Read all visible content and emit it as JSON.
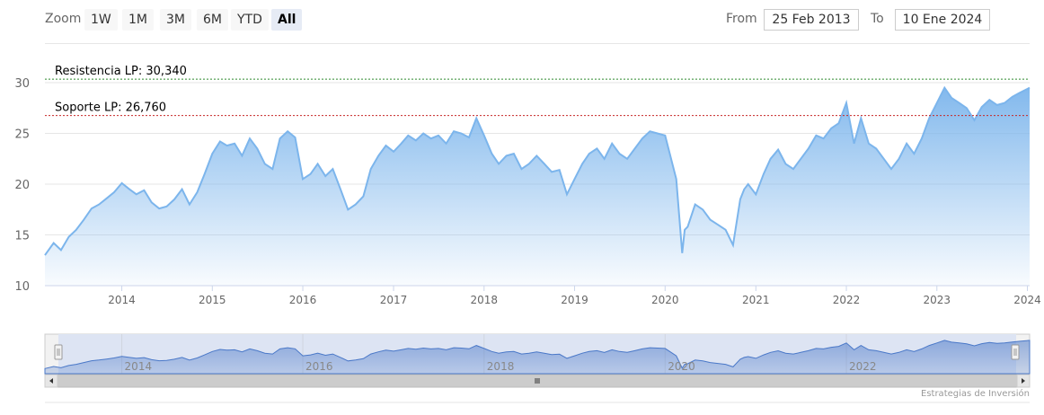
{
  "toolbar": {
    "zoom_label": "Zoom",
    "buttons": [
      "1W",
      "1M",
      "3M",
      "6M",
      "YTD",
      "All"
    ],
    "active_button": "All",
    "from_label": "From",
    "from_value": "25 Feb 2013",
    "to_label": "To",
    "to_value": "10 Ene 2024"
  },
  "credit": "Estrategias de Inversión",
  "colors": {
    "series": "#7cb5ec",
    "resistance": "#2e8b2e",
    "support": "#c62828"
  },
  "chart_data": {
    "type": "area",
    "title": "",
    "xlabel": "",
    "ylabel": "",
    "ylim": [
      10,
      30
    ],
    "yticks": [
      10,
      15,
      20,
      25,
      30
    ],
    "xlim": [
      "2013-02-25",
      "2024-01-10"
    ],
    "xticks": [
      "2014",
      "2015",
      "2016",
      "2017",
      "2018",
      "2019",
      "2020",
      "2021",
      "2022",
      "2023",
      "2024"
    ],
    "grid": true,
    "legend": "none",
    "lines": [
      {
        "label": "Resistencia LP: 30,340",
        "value": 30.34,
        "style": "dotted"
      },
      {
        "label": "Soporte LP: 26,760",
        "value": 26.76,
        "style": "dotted"
      }
    ],
    "series": [
      {
        "x": [
          "2013-02-25",
          "2013-04-01",
          "2013-05-01",
          "2013-06-01",
          "2013-07-01",
          "2013-08-01",
          "2013-09-01",
          "2013-10-01",
          "2013-11-01",
          "2013-12-01",
          "2014-01-01",
          "2014-02-01",
          "2014-03-01",
          "2014-04-01",
          "2014-05-01",
          "2014-06-01",
          "2014-07-01",
          "2014-08-01",
          "2014-09-01",
          "2014-10-01",
          "2014-11-01",
          "2014-12-01",
          "2015-01-01",
          "2015-02-01",
          "2015-03-01",
          "2015-04-01",
          "2015-05-01",
          "2015-06-01",
          "2015-07-01",
          "2015-08-01",
          "2015-09-01",
          "2015-10-01",
          "2015-11-01",
          "2015-12-01",
          "2016-01-01",
          "2016-02-01",
          "2016-03-01",
          "2016-04-01",
          "2016-05-01",
          "2016-06-01",
          "2016-07-01",
          "2016-08-01",
          "2016-09-01",
          "2016-10-01",
          "2016-11-01",
          "2016-12-01",
          "2017-01-01",
          "2017-02-01",
          "2017-03-01",
          "2017-04-01",
          "2017-05-01",
          "2017-06-01",
          "2017-07-01",
          "2017-08-01",
          "2017-09-01",
          "2017-10-01",
          "2017-11-01",
          "2017-12-01",
          "2018-01-01",
          "2018-02-01",
          "2018-03-01",
          "2018-04-01",
          "2018-05-01",
          "2018-06-01",
          "2018-07-01",
          "2018-08-01",
          "2018-09-01",
          "2018-10-01",
          "2018-11-01",
          "2018-12-01",
          "2019-01-01",
          "2019-02-01",
          "2019-03-01",
          "2019-04-01",
          "2019-05-01",
          "2019-06-01",
          "2019-07-01",
          "2019-08-01",
          "2019-09-01",
          "2019-10-01",
          "2019-11-01",
          "2019-12-01",
          "2020-01-01",
          "2020-02-15",
          "2020-03-10",
          "2020-03-20",
          "2020-04-01",
          "2020-05-01",
          "2020-06-01",
          "2020-07-01",
          "2020-08-01",
          "2020-09-01",
          "2020-10-01",
          "2020-10-30",
          "2020-11-15",
          "2020-12-01",
          "2021-01-01",
          "2021-02-01",
          "2021-03-01",
          "2021-04-01",
          "2021-05-01",
          "2021-06-01",
          "2021-07-01",
          "2021-08-01",
          "2021-09-01",
          "2021-10-01",
          "2021-11-01",
          "2021-12-01",
          "2022-01-01",
          "2022-02-01",
          "2022-03-01",
          "2022-04-01",
          "2022-05-01",
          "2022-06-01",
          "2022-07-01",
          "2022-08-01",
          "2022-09-01",
          "2022-10-01",
          "2022-11-01",
          "2022-12-01",
          "2023-01-01",
          "2023-02-01",
          "2023-03-01",
          "2023-04-01",
          "2023-05-01",
          "2023-06-01",
          "2023-07-01",
          "2023-08-01",
          "2023-09-01",
          "2023-10-01",
          "2023-11-01",
          "2023-12-01",
          "2024-01-10"
        ],
        "values": [
          13.0,
          14.2,
          13.5,
          14.8,
          15.5,
          16.5,
          17.6,
          18.0,
          18.6,
          19.2,
          20.1,
          19.5,
          19.0,
          19.4,
          18.2,
          17.6,
          17.8,
          18.5,
          19.5,
          18.0,
          19.2,
          21.0,
          23.0,
          24.2,
          23.8,
          24.0,
          22.8,
          24.5,
          23.5,
          22.0,
          21.5,
          24.5,
          25.2,
          24.6,
          20.5,
          21.0,
          22.0,
          20.8,
          21.5,
          19.5,
          17.5,
          18.0,
          18.8,
          21.5,
          22.8,
          23.8,
          23.2,
          24.0,
          24.8,
          24.3,
          25.0,
          24.5,
          24.8,
          24.0,
          25.2,
          25.0,
          24.6,
          26.5,
          24.8,
          23.0,
          22.0,
          22.8,
          23.0,
          21.5,
          22.0,
          22.8,
          22.0,
          21.2,
          21.4,
          19.0,
          20.5,
          22.0,
          23.0,
          23.5,
          22.5,
          24.0,
          23.0,
          22.5,
          23.5,
          24.5,
          25.2,
          25.0,
          24.8,
          20.5,
          13.2,
          15.5,
          15.8,
          18.0,
          17.5,
          16.5,
          16.0,
          15.5,
          14.0,
          18.5,
          19.5,
          20.0,
          19.0,
          21.0,
          22.5,
          23.4,
          22.0,
          21.5,
          22.5,
          23.5,
          24.8,
          24.5,
          25.5,
          26.0,
          28.0,
          24.0,
          26.5,
          24.0,
          23.5,
          22.5,
          21.5,
          22.5,
          24.0,
          23.0,
          24.5,
          26.5,
          28.0,
          29.5,
          28.5,
          28.0,
          27.5,
          26.3,
          27.6,
          28.3,
          27.8,
          28.0,
          28.6,
          29.0,
          29.5
        ]
      }
    ]
  }
}
